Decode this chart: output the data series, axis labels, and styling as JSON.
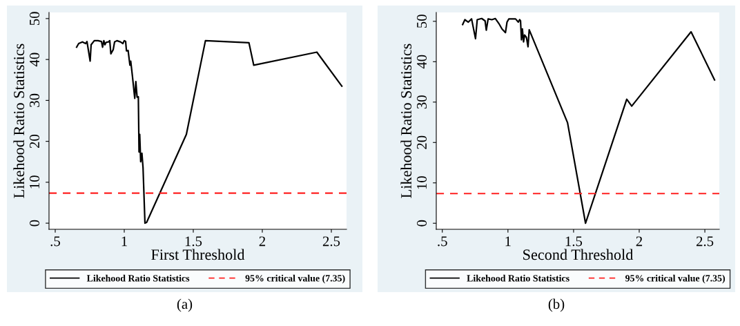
{
  "chart_data": [
    {
      "type": "line",
      "xlabel": "First Threshold",
      "ylabel": "Likehood Ratio Statistics",
      "xlim": [
        0.455,
        2.61
      ],
      "ylim": [
        -1.5,
        51.5
      ],
      "xticks": [
        {
          "value": 0.5,
          "label": ".5"
        },
        1,
        1.5,
        2,
        2.5
      ],
      "yticks": [
        0,
        10,
        20,
        30,
        40,
        50
      ],
      "grid": false,
      "legend": "bottom",
      "marker": "none",
      "line_style": "solid",
      "series": [
        {
          "name": "Likehood Ratio Statistics",
          "color": "#000000",
          "x": [
            0.655,
            0.67,
            0.697,
            0.72,
            0.73,
            0.753,
            0.76,
            0.783,
            0.81,
            0.835,
            0.843,
            0.852,
            0.86,
            0.869,
            0.886,
            0.895,
            0.903,
            0.92,
            0.93,
            0.947,
            0.972,
            0.99,
            1.0,
            1.01,
            1.016,
            1.028,
            1.041,
            1.047,
            1.059,
            1.076,
            1.084,
            1.093,
            1.102,
            1.107,
            1.112,
            1.119,
            1.128,
            1.136,
            1.15,
            1.162,
            1.45,
            1.588,
            1.903,
            1.938,
            2.395,
            2.576
          ],
          "values": [
            43.0,
            43.9,
            44.3,
            43.9,
            44.4,
            39.6,
            43.6,
            44.6,
            44.6,
            44.4,
            43.0,
            44.6,
            43.6,
            44.2,
            44.3,
            44.6,
            41.4,
            42.4,
            44.3,
            44.6,
            44.3,
            43.9,
            44.6,
            44.4,
            42.1,
            42.2,
            38.6,
            39.6,
            36.0,
            30.5,
            34.6,
            30.8,
            30.9,
            17.4,
            21.7,
            15.0,
            17.1,
            13.6,
            0,
            0.2,
            21.7,
            44.6,
            44.1,
            38.6,
            41.8,
            33.5
          ]
        }
      ],
      "ref_lines": [
        {
          "axis": "y",
          "value": 7.35,
          "label": "95% critical value (7.35)",
          "color": "#ff2020",
          "line_style": "dashed"
        }
      ],
      "annotations": [
        "(a)"
      ]
    },
    {
      "type": "line",
      "xlabel": "Second Threshold",
      "ylabel": "Likehood Ratio Statistics",
      "xlim": [
        0.454,
        2.61
      ],
      "ylim": [
        -1.5,
        52.2
      ],
      "xticks": [
        {
          "value": 0.5,
          "label": ".5"
        },
        1,
        1.5,
        2,
        2.5
      ],
      "yticks": [
        0,
        10,
        20,
        30,
        40,
        50
      ],
      "grid": false,
      "legend": "bottom",
      "marker": "none",
      "line_style": "solid",
      "series": [
        {
          "name": "Likehood Ratio Statistics",
          "color": "#000000",
          "x": [
            0.655,
            0.672,
            0.698,
            0.723,
            0.753,
            0.766,
            0.8,
            0.826,
            0.835,
            0.849,
            0.878,
            0.904,
            0.93,
            0.955,
            0.981,
            0.993,
            1.007,
            1.058,
            1.079,
            1.089,
            1.096,
            1.103,
            1.11,
            1.119,
            1.127,
            1.141,
            1.153,
            1.162,
            1.454,
            1.591,
            1.905,
            1.943,
            2.395,
            2.574
          ],
          "values": [
            49.2,
            50.4,
            49.8,
            50.6,
            45.7,
            50.4,
            50.7,
            50.1,
            47.8,
            50.6,
            50.4,
            50.7,
            49.5,
            48.1,
            47.2,
            49.8,
            50.6,
            50.6,
            49.8,
            50.4,
            50.1,
            45.4,
            48.1,
            44.9,
            46.6,
            46.0,
            43.7,
            47.9,
            24.9,
            0,
            30.7,
            29.0,
            47.4,
            35.5
          ]
        }
      ],
      "ref_lines": [
        {
          "axis": "y",
          "value": 7.35,
          "label": "95% critical value (7.35)",
          "color": "#ff2020",
          "line_style": "dashed"
        }
      ],
      "annotations": [
        "(b)"
      ]
    }
  ]
}
